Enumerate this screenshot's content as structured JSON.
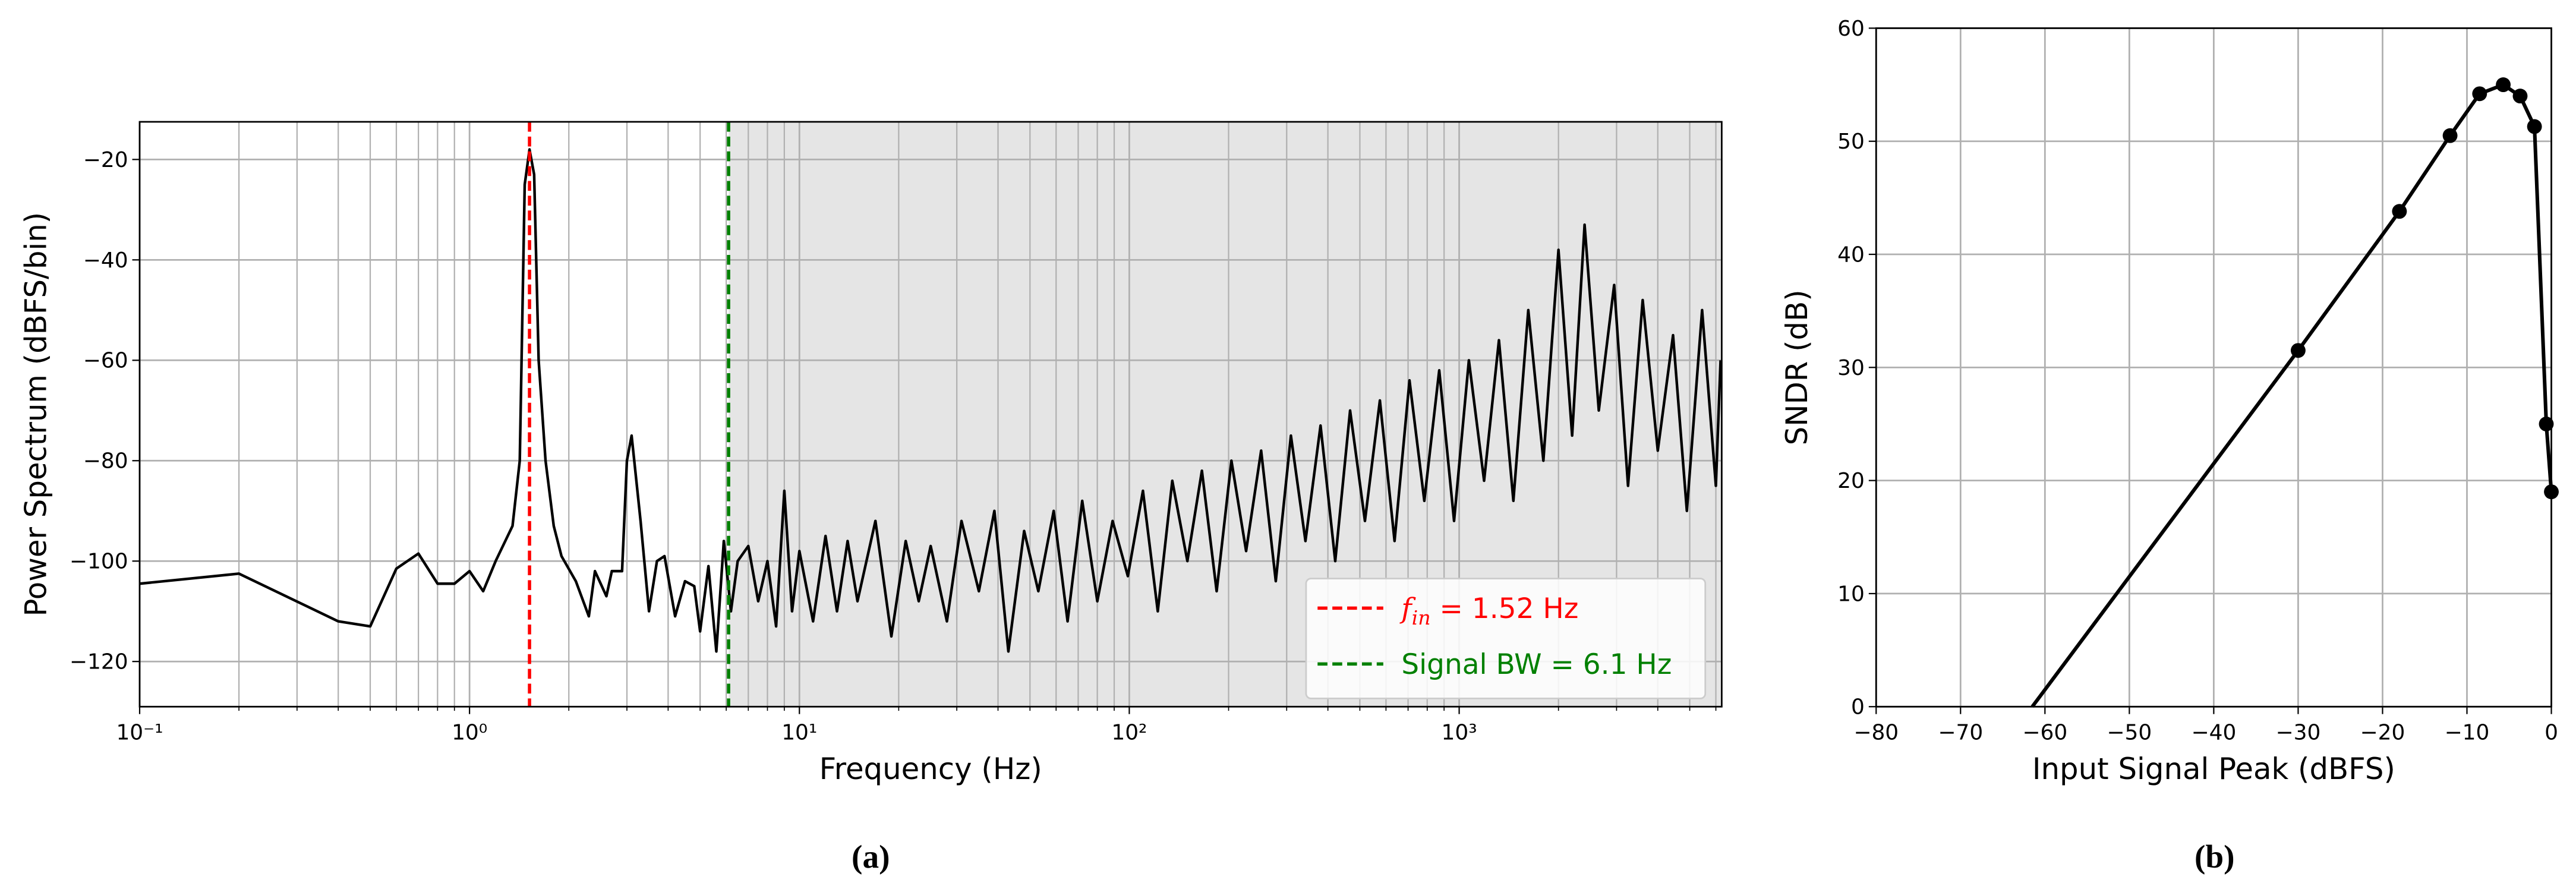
{
  "chart_data": [
    {
      "type": "line",
      "xlabel": "Frequency (Hz)",
      "ylabel": "Power Spectrum (dBFS/bin)",
      "caption": "(a)",
      "xscale": "log",
      "grid": true,
      "minor_grid": true,
      "legend": "lower right",
      "xlim": [
        0.1,
        6250
      ],
      "ylim": [
        -129,
        -12.5
      ],
      "xticks": [
        {
          "value": 0.1,
          "label": "10⁻¹"
        },
        {
          "value": 1,
          "label": "10⁰"
        },
        {
          "value": 10,
          "label": "10¹"
        },
        {
          "value": 100,
          "label": "10²"
        },
        {
          "value": 1000,
          "label": "10³"
        }
      ],
      "yticks": [
        {
          "value": -20,
          "label": "−20"
        },
        {
          "value": -40,
          "label": "−40"
        },
        {
          "value": -60,
          "label": "−60"
        },
        {
          "value": -80,
          "label": "−80"
        },
        {
          "value": -100,
          "label": "−100"
        },
        {
          "value": -120,
          "label": "−120"
        }
      ],
      "shade_color": "#e5e5e5",
      "vlines": [
        {
          "x": 1.52,
          "color": "#ff0000",
          "label": [
            "f",
            "in",
            " = 1.52 Hz"
          ]
        },
        {
          "x": 6.1,
          "color": "#008000",
          "label": [
            "Signal BW = 6.1 Hz"
          ]
        }
      ],
      "series": [
        {
          "color": "#000000",
          "x": [
            0.1,
            0.2,
            0.4,
            0.5,
            0.6,
            0.7,
            0.8,
            0.9,
            1.0,
            1.1,
            1.2,
            1.35,
            1.42,
            1.47,
            1.52,
            1.57,
            1.62,
            1.7,
            1.8,
            1.9,
            2.1,
            2.3,
            2.4,
            2.6,
            2.7,
            2.9,
            3.0,
            3.1,
            3.3,
            3.5,
            3.7,
            3.9,
            4.2,
            4.5,
            4.8,
            5.0,
            5.3,
            5.6,
            5.9,
            6.2,
            6.5,
            7,
            7.5,
            8,
            8.5,
            9,
            9.5,
            10,
            11,
            12,
            13,
            14,
            15,
            17,
            19,
            21,
            23,
            25,
            28,
            31,
            35,
            39,
            43,
            48,
            53,
            59,
            65,
            72,
            80,
            89,
            99,
            110,
            122,
            135,
            150,
            166,
            184,
            204,
            226,
            251,
            278,
            309,
            342,
            380,
            421,
            467,
            518,
            575,
            637,
            707,
            784,
            870,
            965,
            1070,
            1190,
            1320,
            1460,
            1620,
            1800,
            2000,
            2200,
            2400,
            2650,
            2950,
            3250,
            3600,
            4000,
            4450,
            4900,
            5450,
            6000,
            6200
          ],
          "values": [
            -104.5,
            -102.5,
            -112,
            -113,
            -101.5,
            -98.5,
            -104.5,
            -104.5,
            -102,
            -106,
            -100,
            -93,
            -80,
            -25,
            -18,
            -23,
            -60,
            -80,
            -93,
            -99,
            -104,
            -111,
            -102,
            -107,
            -102,
            -102,
            -80,
            -75,
            -92,
            -110,
            -100,
            -99,
            -111,
            -104,
            -105,
            -114,
            -101,
            -118,
            -96,
            -110,
            -100,
            -97,
            -108,
            -100,
            -113,
            -86,
            -110,
            -98,
            -112,
            -95,
            -110,
            -96,
            -108,
            -92,
            -115,
            -96,
            -108,
            -97,
            -112,
            -92,
            -106,
            -90,
            -118,
            -94,
            -106,
            -90,
            -112,
            -88,
            -108,
            -92,
            -103,
            -86,
            -110,
            -84,
            -100,
            -82,
            -106,
            -80,
            -98,
            -78,
            -104,
            -75,
            -96,
            -73,
            -100,
            -70,
            -92,
            -68,
            -96,
            -64,
            -88,
            -62,
            -92,
            -60,
            -84,
            -56,
            -88,
            -50,
            -80,
            -38,
            -75,
            -33,
            -70,
            -45,
            -85,
            -48,
            -78,
            -55,
            -90,
            -50,
            -85,
            -60
          ]
        }
      ]
    },
    {
      "type": "line",
      "xlabel": "Input Signal Peak (dBFS)",
      "ylabel": "SNDR (dB)",
      "caption": "(b)",
      "grid": true,
      "xlim": [
        -80,
        0
      ],
      "ylim": [
        0,
        60
      ],
      "xticks": [
        {
          "value": -80,
          "label": "−80"
        },
        {
          "value": -70,
          "label": "−70"
        },
        {
          "value": -60,
          "label": "−60"
        },
        {
          "value": -50,
          "label": "−50"
        },
        {
          "value": -40,
          "label": "−40"
        },
        {
          "value": -30,
          "label": "−30"
        },
        {
          "value": -20,
          "label": "−20"
        },
        {
          "value": -10,
          "label": "−10"
        },
        0
      ],
      "yticks": [
        0,
        10,
        20,
        30,
        40,
        50,
        60
      ],
      "series": [
        {
          "color": "#000000",
          "x": [
            -61.5,
            -30,
            -18,
            -12,
            -8.5,
            -5.7,
            -3.7,
            -2,
            -0.6,
            0
          ],
          "values": [
            0,
            31.5,
            43.8,
            50.5,
            54.2,
            55,
            54,
            51.3,
            25,
            19
          ],
          "markers": [
            false,
            true,
            true,
            true,
            true,
            true,
            true,
            true,
            true,
            true
          ]
        }
      ]
    }
  ]
}
